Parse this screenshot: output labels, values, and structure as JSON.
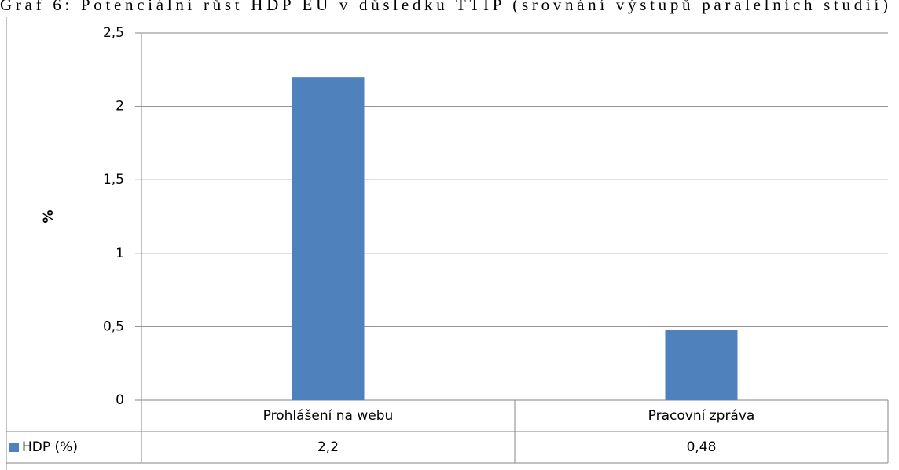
{
  "chart_data": {
    "type": "bar",
    "title": "Graf 6: Potenciální růst HDP EU v důsledku TTIP (srovnání výstupů paralelních studií)",
    "y_label": "%",
    "categories": [
      "Prohlášení na webu",
      "Pracovní zpráva"
    ],
    "series": [
      {
        "name": "HDP (%)",
        "color": "#4f81bd",
        "values": [
          2.2,
          0.48
        ],
        "value_labels": [
          "2,2",
          "0,48"
        ]
      }
    ],
    "ylim": [
      0,
      2.5
    ],
    "yticks": [
      0,
      {
        "value": 0.5,
        "label": "0,5"
      },
      1,
      {
        "value": 1.5,
        "label": "1,5"
      },
      2,
      {
        "value": 2.5,
        "label": "2,5"
      }
    ],
    "grid": true,
    "data_table": true
  }
}
